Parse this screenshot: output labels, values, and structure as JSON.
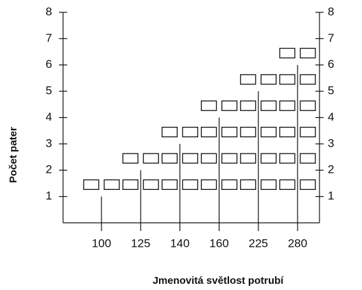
{
  "chart_data": {
    "type": "pictogram",
    "y_label": "Počet pater",
    "x_label": "Jmenovitá světlost potrubí",
    "categories": [
      "100",
      "125",
      "140",
      "160",
      "225",
      "280"
    ],
    "values": [
      1,
      2,
      3,
      4,
      5,
      6
    ],
    "ylim": [
      0,
      8
    ],
    "yticks": [
      1,
      2,
      3,
      4,
      5,
      6,
      7,
      8
    ],
    "color": "#111111",
    "right_axis": true
  }
}
